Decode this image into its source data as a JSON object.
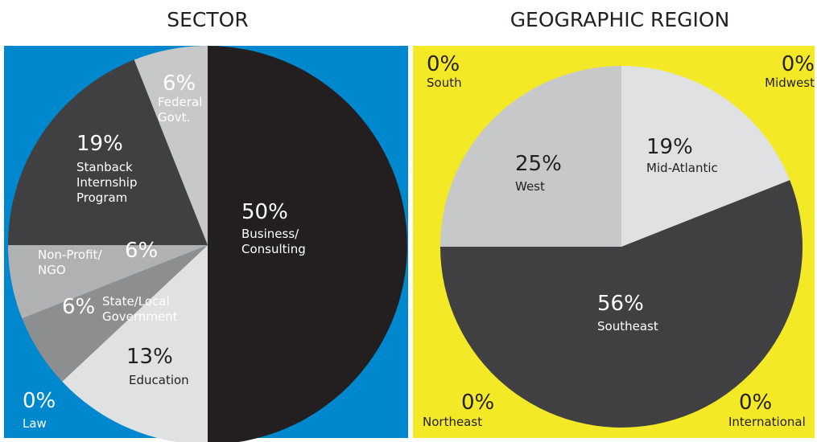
{
  "chart_data": [
    {
      "type": "pie",
      "title": "SECTOR",
      "background": "#0088cf",
      "categories": [
        "Business/ Consulting",
        "Education",
        "State/Local Government",
        "Non-Profit/ NGO",
        "Stanback Internship Program",
        "Federal Govt.",
        "Law"
      ],
      "values": [
        50,
        13,
        6,
        6,
        19,
        6,
        0
      ],
      "value_labels": [
        "50%",
        "13%",
        "6%",
        "6%",
        "19%",
        "6%",
        "0%"
      ],
      "colors": [
        "#231f20",
        "#e0e1e3",
        "#8d8e90",
        "#b0b1b3",
        "#404042",
        "#c7c8ca",
        "#0088cf"
      ]
    },
    {
      "type": "pie",
      "title": "GEOGRAPHIC REGION",
      "background": "#f4e926",
      "categories": [
        "Mid-Atlantic",
        "Southeast",
        "West",
        "South",
        "Midwest",
        "Northeast",
        "International"
      ],
      "values": [
        19,
        56,
        25,
        0,
        0,
        0,
        0
      ],
      "value_labels": [
        "19%",
        "56%",
        "25%",
        "0%",
        "0%",
        "0%",
        "0%"
      ],
      "colors": [
        "#e0e1e3",
        "#404042",
        "#c7c8ca",
        "#f4e926",
        "#f4e926",
        "#f4e926",
        "#f4e926"
      ]
    }
  ]
}
